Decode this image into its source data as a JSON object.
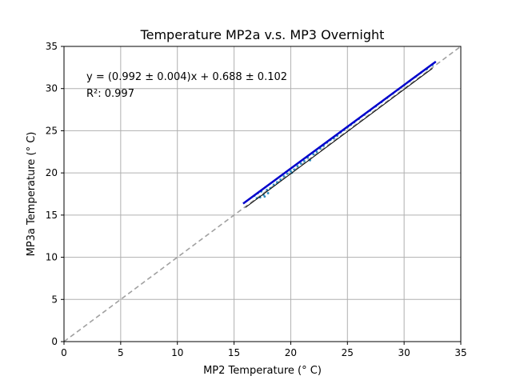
{
  "chart_data": {
    "type": "scatter",
    "title": "Temperature MP2a v.s. MP3 Overnight",
    "xlabel": "MP2 Temperature (° C)",
    "ylabel": "MP3a Temperature (° C)",
    "xlim": [
      0,
      35
    ],
    "ylim": [
      0,
      35
    ],
    "xticks": [
      "0",
      "5",
      "10",
      "15",
      "20",
      "25",
      "30",
      "35"
    ],
    "yticks": [
      "0",
      "5",
      "10",
      "15",
      "20",
      "25",
      "30",
      "35"
    ],
    "grid": true,
    "annotations": {
      "equation": "y = (0.992 ± 0.004)x + 0.688 ± 0.102",
      "r_squared": "R²: 0.997"
    },
    "reference_line": {
      "style": "dashed",
      "color": "#a0a0a0",
      "x": [
        0,
        35
      ],
      "y": [
        0,
        35
      ]
    },
    "fit_line": {
      "color": "#0000cc",
      "x": [
        15.8,
        32.8
      ],
      "y": [
        16.36,
        33.2
      ]
    },
    "secondary_line": {
      "color": "#000000",
      "x": [
        16.0,
        32.5
      ],
      "y": [
        15.9,
        32.4
      ]
    },
    "series": [
      {
        "color": "#2b8cbe",
        "points": [
          [
            16.8,
            17.3
          ],
          [
            17.0,
            17.0
          ],
          [
            17.1,
            17.6
          ],
          [
            17.3,
            17.1
          ],
          [
            17.4,
            17.8
          ],
          [
            17.6,
            17.4
          ],
          [
            17.7,
            17.2
          ],
          [
            17.9,
            18.0
          ],
          [
            18.0,
            17.6
          ],
          [
            18.2,
            18.2
          ],
          [
            18.5,
            18.6
          ],
          [
            18.8,
            18.9
          ],
          [
            19.1,
            19.2
          ],
          [
            19.4,
            19.6
          ],
          [
            19.7,
            19.9
          ],
          [
            20.0,
            20.2
          ],
          [
            20.1,
            20.0
          ],
          [
            20.3,
            20.4
          ],
          [
            20.6,
            20.8
          ],
          [
            20.9,
            21.1
          ],
          [
            21.2,
            21.4
          ],
          [
            21.5,
            21.8
          ],
          [
            21.7,
            21.5
          ],
          [
            22.0,
            22.2
          ],
          [
            22.3,
            22.5
          ],
          [
            22.6,
            22.9
          ],
          [
            22.9,
            23.2
          ],
          [
            23.2,
            23.6
          ],
          [
            23.5,
            23.9
          ],
          [
            23.8,
            24.1
          ],
          [
            24.1,
            24.4
          ],
          [
            24.4,
            24.8
          ],
          [
            24.7,
            25.1
          ],
          [
            25.0,
            25.4
          ],
          [
            25.3,
            25.7
          ],
          [
            25.6,
            26.0
          ],
          [
            26.0,
            26.4
          ],
          [
            26.5,
            26.9
          ],
          [
            27.0,
            27.4
          ],
          [
            27.5,
            27.9
          ],
          [
            28.0,
            28.4
          ],
          [
            28.5,
            28.9
          ],
          [
            29.0,
            29.4
          ],
          [
            29.5,
            29.9
          ],
          [
            30.0,
            30.4
          ],
          [
            30.5,
            30.9
          ],
          [
            31.0,
            31.4
          ],
          [
            31.5,
            31.9
          ],
          [
            32.0,
            32.3
          ],
          [
            32.5,
            32.8
          ]
        ]
      }
    ]
  }
}
